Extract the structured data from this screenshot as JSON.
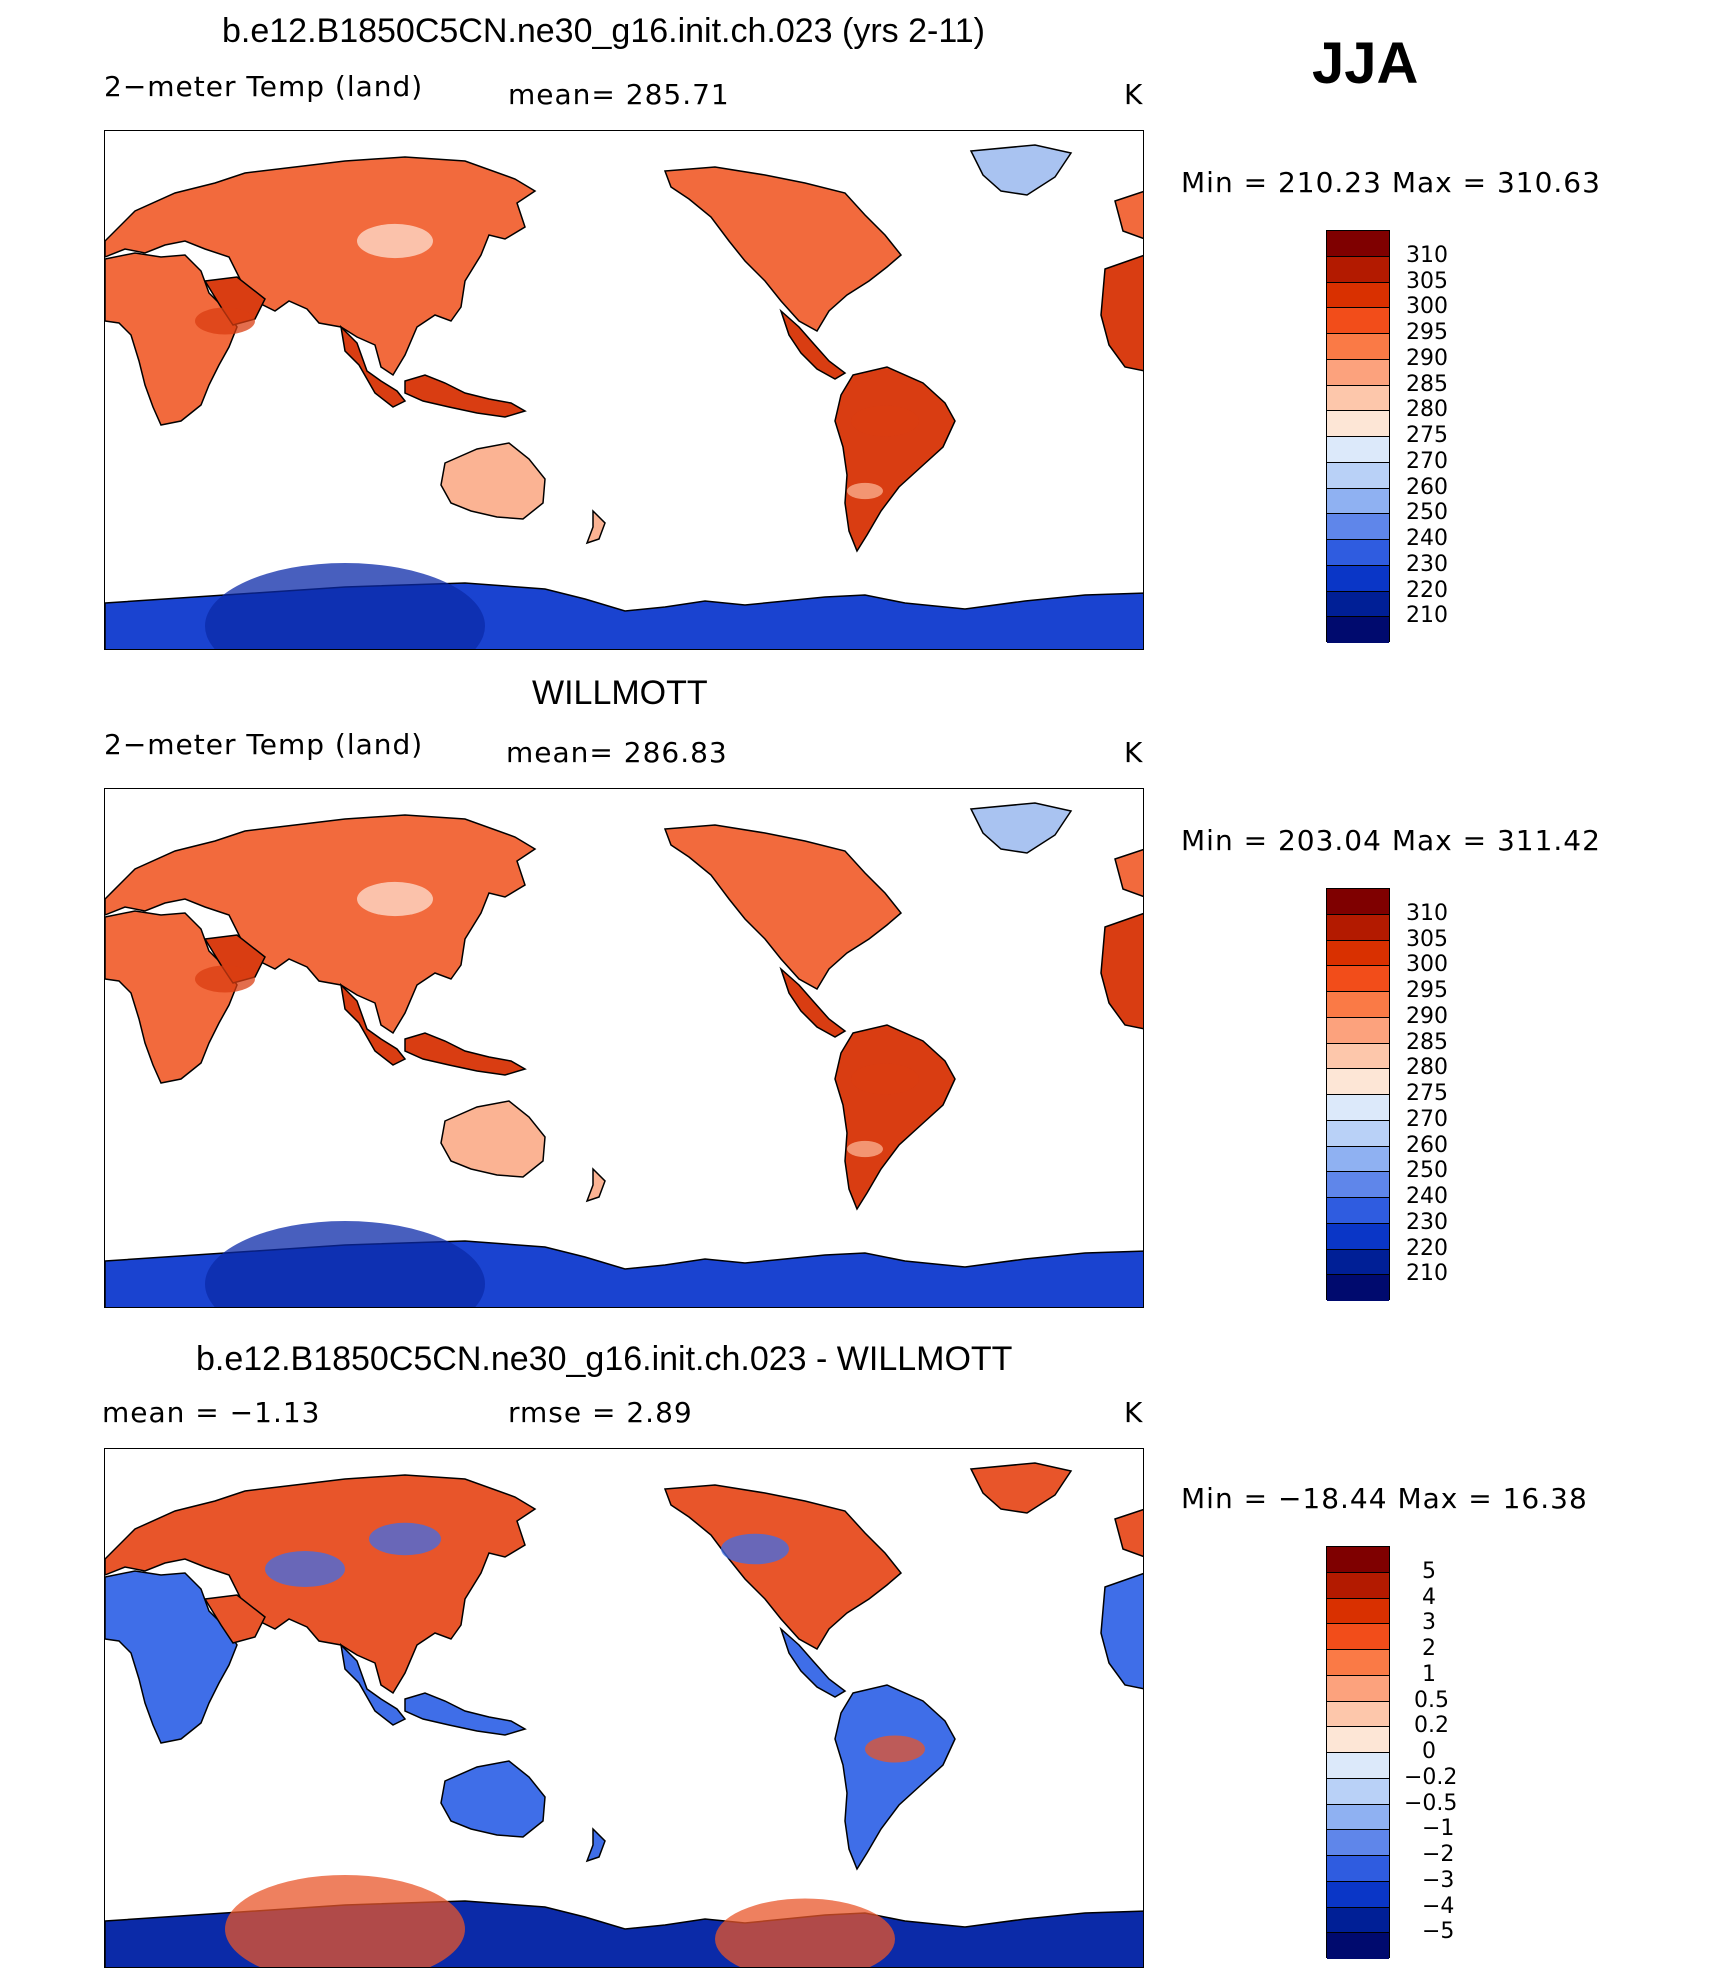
{
  "season": "JJA",
  "panels": [
    {
      "title": "b.e12.B1850C5CN.ne30_g16.init.ch.023 (yrs 2-11)",
      "left_label": "2−meter Temp (land)",
      "mid_label": "mean=  285.71",
      "units": "K",
      "minmax": "Min  =  210.23  Max  =  310.63",
      "colorbar_labels": [
        "310",
        "305",
        "300",
        "295",
        "290",
        "285",
        "280",
        "275",
        "270",
        "260",
        "250",
        "240",
        "230",
        "220",
        "210"
      ]
    },
    {
      "title": "WILLMOTT",
      "left_label": "2−meter Temp (land)",
      "mid_label": "mean=  286.83",
      "units": "K",
      "minmax": "Min  =  203.04  Max  =  311.42",
      "colorbar_labels": [
        "310",
        "305",
        "300",
        "295",
        "290",
        "285",
        "280",
        "275",
        "270",
        "260",
        "250",
        "240",
        "230",
        "220",
        "210"
      ]
    },
    {
      "title": "b.e12.B1850C5CN.ne30_g16.init.ch.023 - WILLMOTT",
      "left_label": "mean  =    −1.13",
      "mid_label": "rmse  =     2.89",
      "units": "K",
      "minmax": "Min  =  −18.44  Max  =    16.38",
      "colorbar_labels": [
        "5",
        "4",
        "3",
        "2",
        "1",
        "0.5",
        "0.2",
        "0",
        "−0.2",
        "−0.5",
        "−1",
        "−2",
        "−3",
        "−4",
        "−5"
      ]
    }
  ],
  "colors": {
    "colorbar": [
      "#7f0000",
      "#b31a00",
      "#d93000",
      "#f24d1a",
      "#fa7a46",
      "#fca27d",
      "#fdc7ab",
      "#fde6d6",
      "#dce9fa",
      "#b9d1f7",
      "#8fb1f2",
      "#5f86ea",
      "#2f5ce0",
      "#0a36c7",
      "#001f96",
      "#000a6e"
    ],
    "land_warm": "#f26a3d",
    "land_hot": "#d93d12",
    "land_mild": "#fbb393",
    "land_cool": "#a9c3f1",
    "ice": "#1a43d0",
    "ice_deep": "#0b2aa8",
    "diff_blue": "#3f6ee8",
    "diff_red": "#e8552a"
  }
}
